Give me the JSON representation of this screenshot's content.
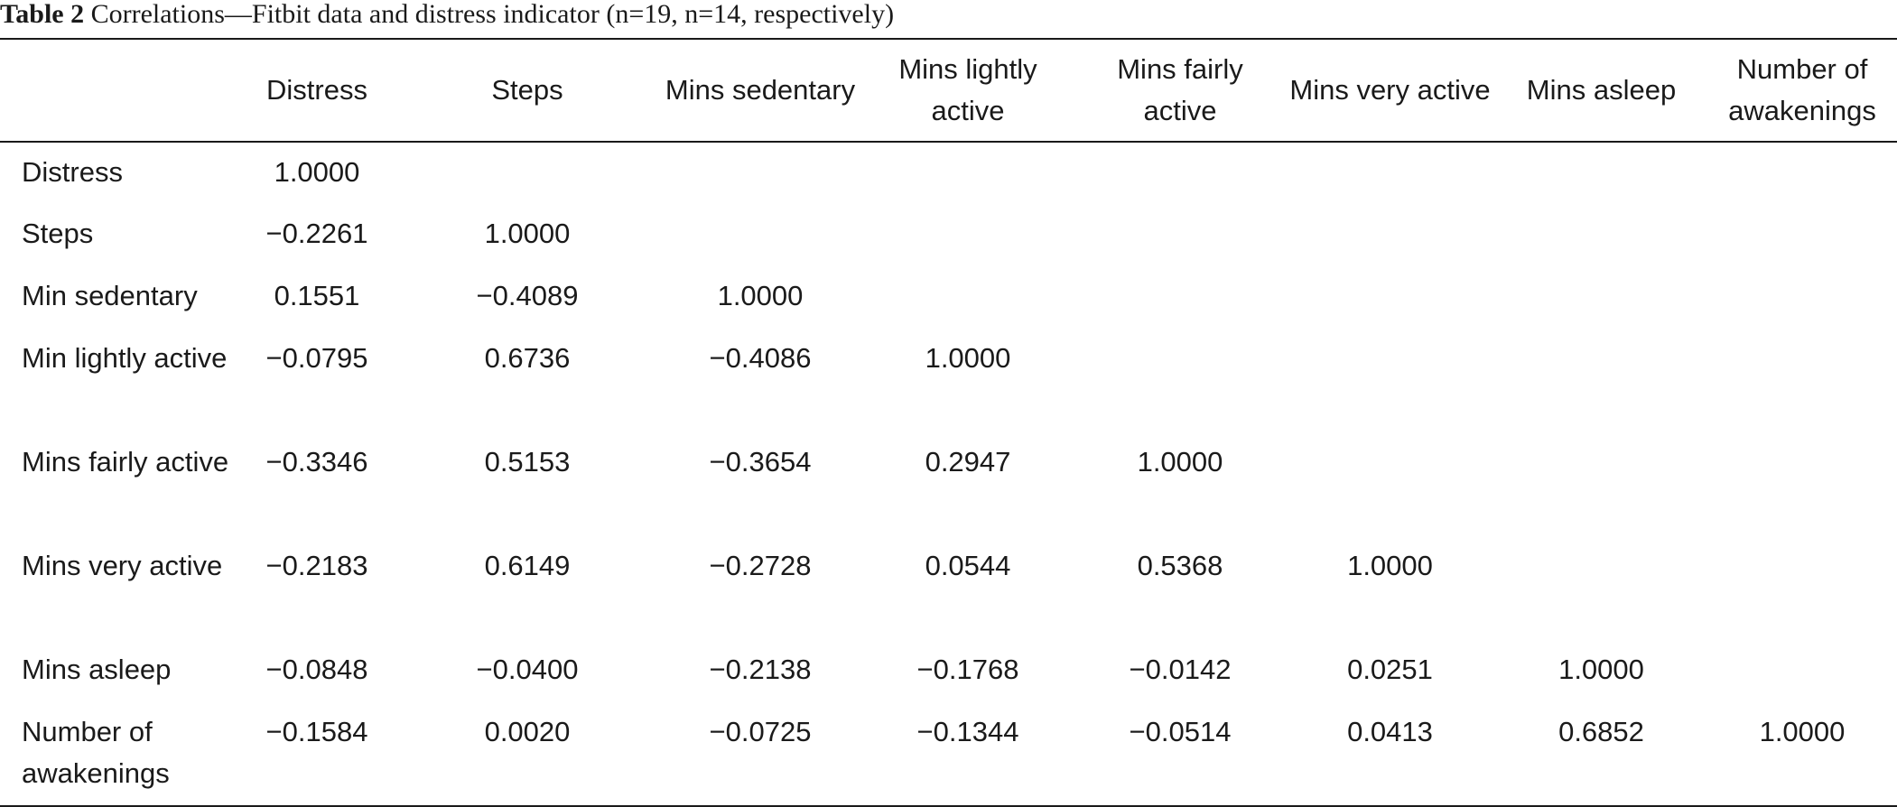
{
  "caption": {
    "label": "Table 2",
    "text": "Correlations—Fitbit data and distress indicator (n=19, n=14, respectively)"
  },
  "table": {
    "corner": "",
    "columns": [
      "Distress",
      "Steps",
      "Mins sedentary",
      "Mins lightly active",
      "Mins fairly active",
      "Mins very active",
      "Mins asleep",
      "Number of awakenings"
    ],
    "rows": [
      {
        "label": "Distress",
        "values": [
          "1.0000",
          "",
          "",
          "",
          "",
          "",
          "",
          ""
        ]
      },
      {
        "label": "Steps",
        "values": [
          "−0.2261",
          "1.0000",
          "",
          "",
          "",
          "",
          "",
          ""
        ]
      },
      {
        "label": "Min sedentary",
        "values": [
          "0.1551",
          "−0.4089",
          "1.0000",
          "",
          "",
          "",
          "",
          ""
        ]
      },
      {
        "label": "Min lightly active",
        "values": [
          "−0.0795",
          "0.6736",
          "−0.4086",
          "1.0000",
          "",
          "",
          "",
          ""
        ]
      },
      {
        "label": "Mins fairly active",
        "values": [
          "−0.3346",
          "0.5153",
          "−0.3654",
          "0.2947",
          "1.0000",
          "",
          "",
          ""
        ]
      },
      {
        "label": "Mins very active",
        "values": [
          "−0.2183",
          "0.6149",
          "−0.2728",
          "0.0544",
          "0.5368",
          "1.0000",
          "",
          ""
        ]
      },
      {
        "label": "Mins asleep",
        "values": [
          "−0.0848",
          "−0.0400",
          "−0.2138",
          "−0.1768",
          "−0.0142",
          "0.0251",
          "1.0000",
          ""
        ]
      },
      {
        "label": "Number of awakenings",
        "values": [
          "−0.1584",
          "0.0020",
          "−0.0725",
          "−0.1344",
          "−0.0514",
          "0.0413",
          "0.6852",
          "1.0000"
        ]
      }
    ]
  }
}
